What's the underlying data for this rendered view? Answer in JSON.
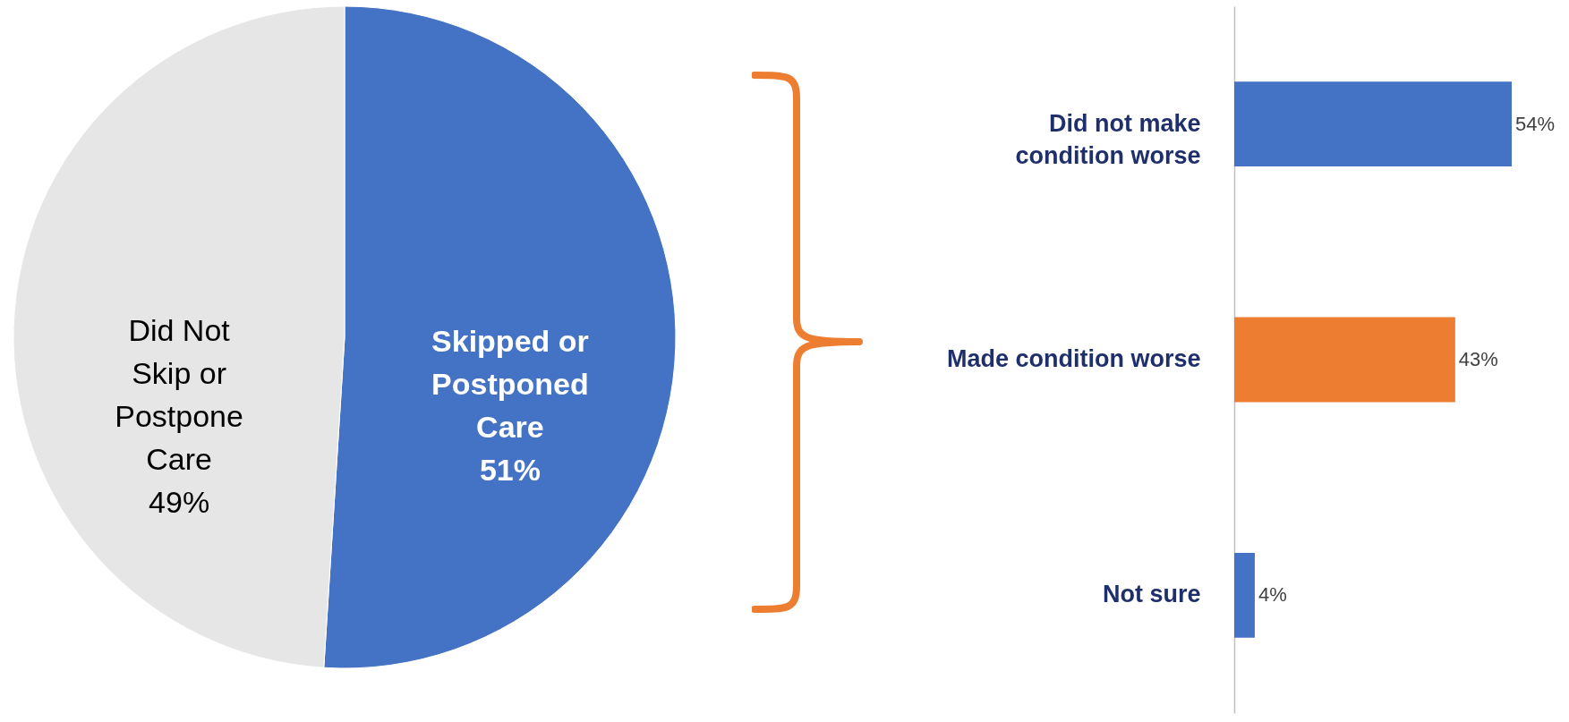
{
  "chart_data": [
    {
      "type": "pie",
      "categories": [
        "Skipped or Postponed Care",
        "Did Not Skip or Postpone Care"
      ],
      "values": [
        51,
        49
      ],
      "colors": [
        "#4472c4",
        "#e7e6e6"
      ],
      "value_labels": [
        "51%",
        "49%"
      ]
    },
    {
      "type": "bar",
      "orientation": "horizontal",
      "categories": [
        "Did not make condition worse",
        "Made condition worse",
        "Not sure"
      ],
      "values": [
        54,
        43,
        4
      ],
      "colors": [
        "#4472c4",
        "#ed7d31",
        "#4472c4"
      ],
      "value_labels": [
        "54%",
        "43%",
        "4%"
      ],
      "grid": false,
      "tick_labels": "y"
    }
  ]
}
